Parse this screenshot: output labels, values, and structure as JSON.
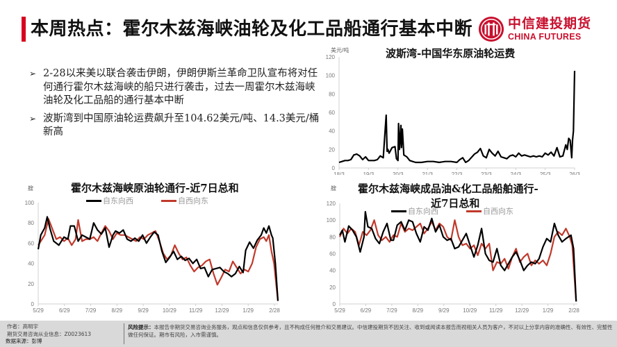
{
  "header": {
    "title": "本周热点：霍尔木兹海峡油轮及化工品船通行基本中断",
    "accent_color": "#d7001e"
  },
  "logo": {
    "cn": "中信建投期货",
    "en": "CHINA FUTURES",
    "color": "#c8102e"
  },
  "bullets": [
    {
      "icon": "➢",
      "text": "2-28以来美以联合袭击伊朗，伊朗伊斯兰革命卫队宣布将对任何通行霍尔木兹海峡的船只进行袭击，过去一周霍尔木兹海峡油轮及化工品船的通行基本中断"
    },
    {
      "icon": "➢",
      "text": "波斯湾到中国原油轮运费飙升至104.62美元/吨、14.3美元/桶新高"
    }
  ],
  "charts": {
    "freight": {
      "title": "波斯湾-中国华东原油轮运费",
      "unit": "美元/吨"
    },
    "crude_transit": {
      "title": "霍尔木兹海峡原油轮通行-近7日总和",
      "unit": "艘",
      "legend": [
        "自东向西",
        "自西向东"
      ]
    },
    "product_transit": {
      "title_line1": "霍尔木兹海峡成品油&化工品船舶通行-",
      "title_line2": "近7日总和",
      "unit": "艘",
      "legend": [
        "自东向西",
        "自西向东"
      ]
    }
  },
  "chart_data": [
    {
      "type": "line",
      "title": "波斯湾-中国华东原油轮运费",
      "xlabel": "",
      "ylabel": "美元/吨",
      "ylim": [
        0,
        120
      ],
      "yticks": [
        0,
        20,
        40,
        60,
        80,
        100,
        120
      ],
      "xticks": [
        "18/3",
        "19/3",
        "20/3",
        "21/3",
        "22/3",
        "23/3",
        "24/3",
        "25/3",
        "26/3"
      ],
      "grid": false,
      "series": [
        {
          "name": "运费",
          "color": "#000000",
          "x": [
            0.0,
            0.1,
            0.2,
            0.3,
            0.4,
            0.5,
            0.6,
            0.7,
            0.8,
            0.9,
            1.0,
            1.1,
            1.2,
            1.3,
            1.4,
            1.5,
            1.6,
            1.63,
            1.66,
            1.7,
            1.8,
            1.9,
            1.95,
            2.0,
            2.02,
            2.05,
            2.1,
            2.12,
            2.15,
            2.2,
            2.3,
            2.4,
            2.5,
            2.6,
            2.8,
            3.0,
            3.2,
            3.4,
            3.6,
            3.8,
            4.0,
            4.1,
            4.2,
            4.3,
            4.4,
            4.6,
            4.7,
            4.8,
            4.9,
            5.0,
            5.1,
            5.2,
            5.3,
            5.4,
            5.5,
            5.6,
            5.7,
            5.8,
            5.9,
            6.0,
            6.1,
            6.2,
            6.3,
            6.4,
            6.5,
            6.6,
            6.7,
            6.8,
            6.9,
            7.0,
            7.1,
            7.2,
            7.3,
            7.4,
            7.5,
            7.6,
            7.7,
            7.75,
            7.8,
            7.85,
            7.9,
            7.93,
            7.96,
            8.0
          ],
          "values": [
            6,
            7,
            8,
            8,
            9,
            14,
            15,
            13,
            9,
            12,
            8,
            8,
            8,
            9,
            13,
            11,
            57,
            18,
            20,
            16,
            22,
            23,
            10,
            8,
            48,
            20,
            46,
            22,
            42,
            14,
            12,
            8,
            7,
            6,
            6,
            7,
            7,
            6,
            7,
            7,
            6,
            9,
            11,
            6,
            8,
            15,
            17,
            21,
            13,
            11,
            20,
            16,
            13,
            18,
            12,
            11,
            10,
            13,
            14,
            12,
            16,
            13,
            14,
            13,
            12,
            13,
            12,
            13,
            12,
            16,
            14,
            17,
            13,
            22,
            12,
            13,
            25,
            20,
            32,
            30,
            11,
            30,
            40,
            105
          ]
        }
      ]
    },
    {
      "type": "line",
      "title": "霍尔木兹海峡原油轮通行-近7日总和",
      "ylabel": "艘",
      "ylim": [
        0,
        100
      ],
      "yticks": [
        0,
        20,
        40,
        60,
        80,
        100
      ],
      "xticks": [
        "5/29",
        "6/29",
        "7/29",
        "8/29",
        "9/29",
        "10/29",
        "11/29",
        "12/29",
        "1/29",
        "2/28"
      ],
      "legend_position": "top",
      "grid": false,
      "series": [
        {
          "name": "自东向西",
          "color": "#000000",
          "x": [
            0,
            0.1,
            0.25,
            0.35,
            0.45,
            0.6,
            0.8,
            1.0,
            1.15,
            1.25,
            1.4,
            1.55,
            1.7,
            1.85,
            2.0,
            2.15,
            2.3,
            2.45,
            2.6,
            2.75,
            2.9,
            3.0,
            3.15,
            3.3,
            3.45,
            3.6,
            3.75,
            3.9,
            4.05,
            4.2,
            4.35,
            4.5,
            4.65,
            4.8,
            4.95,
            5.1,
            5.25,
            5.4,
            5.55,
            5.7,
            5.85,
            6.0,
            6.15,
            6.3,
            6.45,
            6.6,
            6.75,
            6.9,
            7.05,
            7.2,
            7.35,
            7.5,
            7.65,
            7.8,
            7.95,
            8.05,
            8.2,
            8.35,
            8.5,
            8.65,
            8.75,
            8.85,
            8.95,
            9.05,
            9.1,
            9.2,
            9.3
          ],
          "values": [
            54,
            68,
            75,
            86,
            75,
            62,
            58,
            66,
            64,
            77,
            77,
            62,
            68,
            66,
            64,
            80,
            73,
            69,
            75,
            56,
            68,
            72,
            70,
            73,
            64,
            62,
            65,
            62,
            68,
            60,
            66,
            71,
            68,
            52,
            41,
            46,
            52,
            44,
            47,
            43,
            45,
            40,
            44,
            35,
            36,
            27,
            34,
            35,
            36,
            32,
            30,
            27,
            30,
            37,
            31,
            53,
            61,
            55,
            63,
            68,
            75,
            70,
            77,
            68,
            65,
            40,
            3
          ]
        },
        {
          "name": "自西向东",
          "color": "#c0392b",
          "x": [
            0,
            0.1,
            0.25,
            0.4,
            0.55,
            0.7,
            0.85,
            1.0,
            1.15,
            1.3,
            1.45,
            1.55,
            1.7,
            1.85,
            2.0,
            2.15,
            2.3,
            2.45,
            2.6,
            2.75,
            2.9,
            3.05,
            3.2,
            3.35,
            3.5,
            3.65,
            3.8,
            3.95,
            4.1,
            4.25,
            4.4,
            4.55,
            4.7,
            4.85,
            5.0,
            5.15,
            5.3,
            5.45,
            5.6,
            5.75,
            5.9,
            6.05,
            6.2,
            6.35,
            6.5,
            6.65,
            6.8,
            6.95,
            7.1,
            7.25,
            7.4,
            7.55,
            7.7,
            7.85,
            8.0,
            8.15,
            8.3,
            8.45,
            8.6,
            8.75,
            8.85,
            8.95,
            9.05,
            9.15,
            9.3
          ],
          "values": [
            58,
            62,
            68,
            84,
            74,
            64,
            66,
            62,
            65,
            58,
            64,
            83,
            62,
            64,
            64,
            66,
            62,
            70,
            77,
            72,
            64,
            70,
            68,
            68,
            66,
            64,
            62,
            66,
            64,
            68,
            70,
            72,
            62,
            50,
            44,
            48,
            58,
            50,
            44,
            46,
            38,
            32,
            36,
            38,
            42,
            44,
            30,
            19,
            26,
            34,
            32,
            42,
            36,
            30,
            34,
            32,
            40,
            56,
            64,
            66,
            62,
            68,
            52,
            40,
            3
          ]
        }
      ]
    },
    {
      "type": "line",
      "title": "霍尔木兹海峡成品油&化工品船舶通行-近7日总和",
      "ylabel": "艘",
      "ylim": [
        0,
        120
      ],
      "yticks": [
        0,
        20,
        40,
        60,
        80,
        100,
        120
      ],
      "xticks": [
        "5/29",
        "6/29",
        "7/29",
        "8/29",
        "9/29",
        "10/29",
        "11/29",
        "12/29",
        "1/29",
        "2/28"
      ],
      "legend_position": "top",
      "grid": false,
      "series": [
        {
          "name": "自东向西",
          "color": "#000000",
          "x": [
            0,
            0.1,
            0.2,
            0.35,
            0.5,
            0.65,
            0.8,
            0.95,
            1.0,
            1.1,
            1.25,
            1.4,
            1.55,
            1.7,
            1.85,
            2.0,
            2.1,
            2.25,
            2.4,
            2.55,
            2.7,
            2.85,
            3.0,
            3.15,
            3.3,
            3.45,
            3.6,
            3.75,
            3.9,
            4.05,
            4.2,
            4.35,
            4.5,
            4.65,
            4.8,
            4.95,
            5.1,
            5.25,
            5.4,
            5.55,
            5.7,
            5.85,
            6.0,
            6.15,
            6.3,
            6.45,
            6.6,
            6.75,
            6.9,
            7.05,
            7.2,
            7.35,
            7.5,
            7.65,
            7.8,
            7.95,
            8.1,
            8.25,
            8.4,
            8.55,
            8.7,
            8.85,
            8.95,
            9.05,
            9.15,
            9.25
          ],
          "values": [
            82,
            88,
            74,
            93,
            88,
            80,
            62,
            80,
            110,
            92,
            90,
            78,
            72,
            86,
            96,
            76,
            76,
            94,
            98,
            88,
            100,
            98,
            84,
            74,
            92,
            88,
            102,
            86,
            94,
            80,
            76,
            78,
            66,
            68,
            76,
            84,
            70,
            56,
            70,
            90,
            60,
            52,
            50,
            66,
            46,
            40,
            48,
            56,
            62,
            52,
            40,
            46,
            50,
            48,
            54,
            68,
            78,
            74,
            96,
            82,
            74,
            78,
            80,
            82,
            66,
            3
          ]
        },
        {
          "name": "自西向东",
          "color": "#c0392b",
          "x": [
            0,
            0.15,
            0.3,
            0.45,
            0.6,
            0.75,
            0.9,
            1.05,
            1.2,
            1.35,
            1.5,
            1.65,
            1.8,
            1.95,
            2.1,
            2.25,
            2.4,
            2.55,
            2.7,
            2.85,
            3.0,
            3.15,
            3.3,
            3.45,
            3.6,
            3.75,
            3.9,
            4.05,
            4.2,
            4.35,
            4.5,
            4.65,
            4.8,
            4.95,
            5.1,
            5.25,
            5.4,
            5.55,
            5.7,
            5.85,
            6.0,
            6.15,
            6.3,
            6.45,
            6.6,
            6.75,
            6.9,
            7.05,
            7.2,
            7.35,
            7.5,
            7.65,
            7.8,
            7.95,
            8.1,
            8.25,
            8.4,
            8.55,
            8.7,
            8.85,
            9.0,
            9.1,
            9.25
          ],
          "values": [
            80,
            90,
            84,
            90,
            86,
            70,
            86,
            82,
            88,
            100,
            82,
            76,
            80,
            74,
            82,
            80,
            96,
            86,
            90,
            88,
            92,
            96,
            84,
            90,
            98,
            88,
            96,
            92,
            80,
            76,
            100,
            80,
            70,
            72,
            66,
            70,
            58,
            72,
            66,
            72,
            40,
            50,
            48,
            54,
            42,
            56,
            66,
            50,
            56,
            60,
            46,
            52,
            48,
            52,
            46,
            60,
            80,
            86,
            82,
            90,
            80,
            70,
            3
          ]
        }
      ]
    }
  ],
  "footer": {
    "author_label": "作者：高明宇",
    "license_label": "期货交易咨询从业信息：Z0023613",
    "source_label": "数据来源：彭博",
    "risk_title": "风险提示：",
    "risk_text": "本报告非期货交易咨询业务服务，观点和信息仅供参考，且不构成任何推介和交易建议。中信建投期货不因关注、收到或阅读本报告而视相关人员为客户，不对以上分享内容的准确性、有效性、完整性做任何保证。期市有风险，入市需谨慎。"
  }
}
